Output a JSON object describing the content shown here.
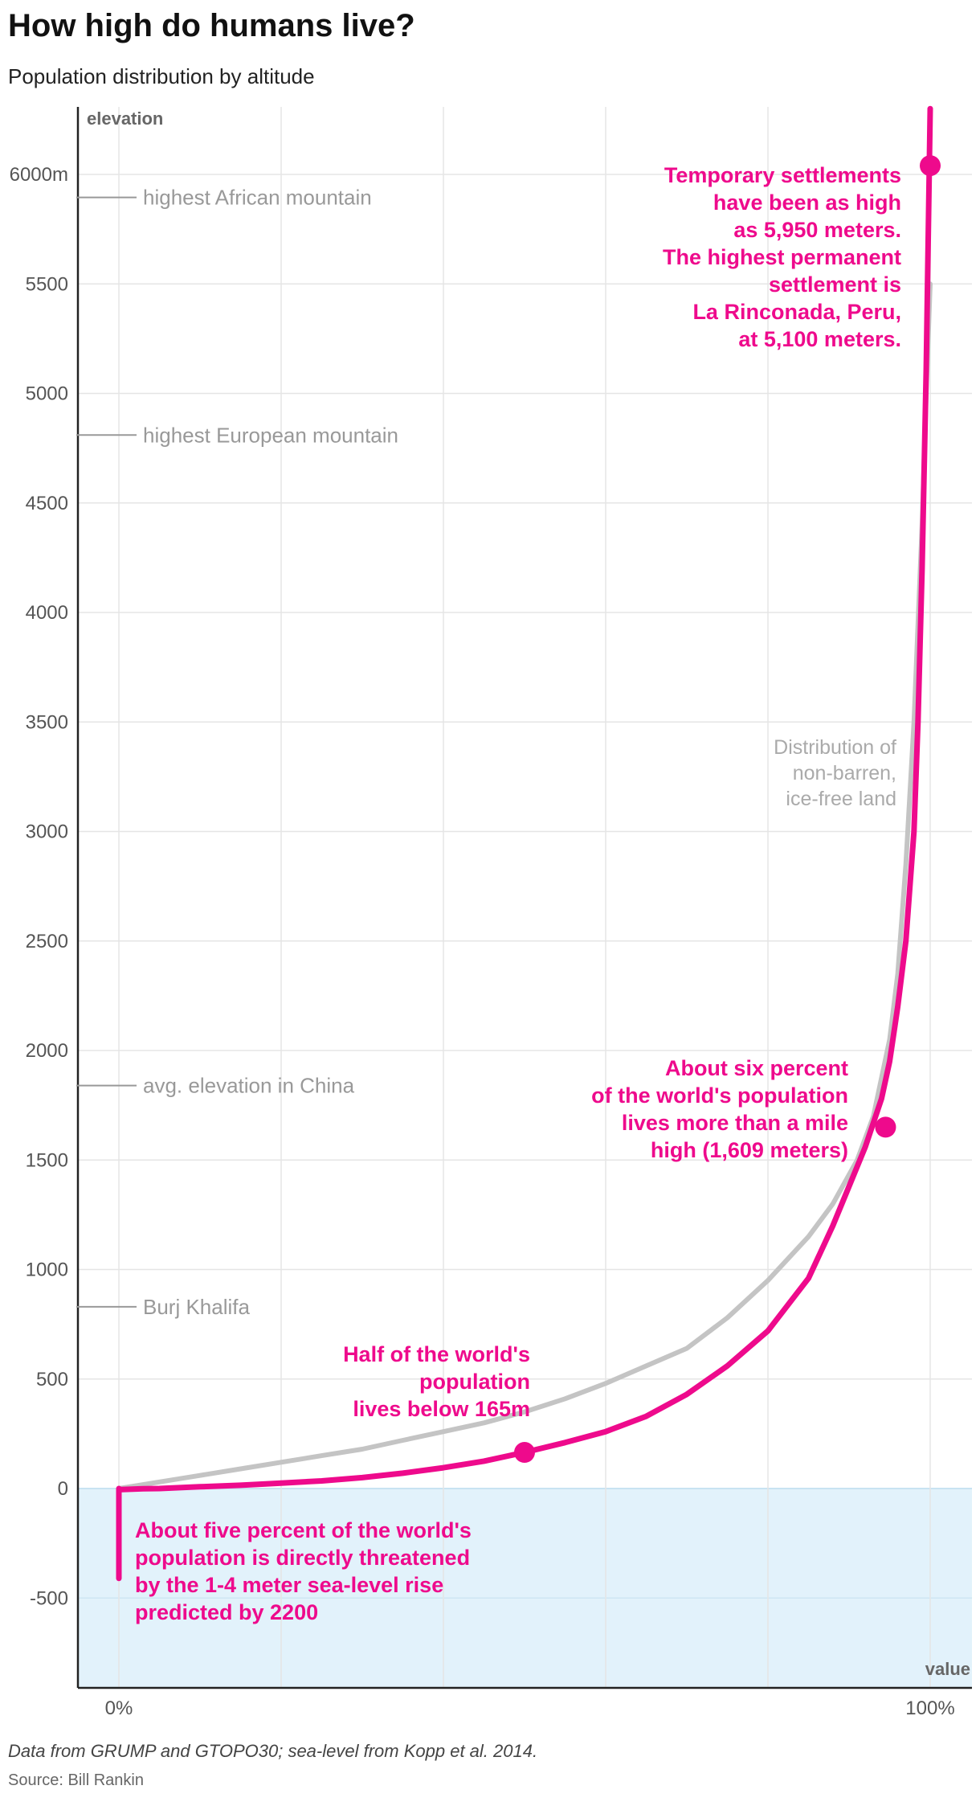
{
  "header": {
    "title": "How high do humans live?",
    "subtitle": "Population distribution by altitude"
  },
  "footer": {
    "note": "Data from GRUMP and GTOPO30; sea-level from Kopp et al. 2014.",
    "source": "Source: Bill Rankin"
  },
  "colors": {
    "population": "#ee0a8c",
    "land": "#c4c4c4",
    "below_sea": "#e2f2fb",
    "reference": "#999999",
    "grid": "#e5e5e5"
  },
  "chart_data": {
    "type": "line",
    "xlabel": "value",
    "ylabel": "elevation",
    "xlim": [
      0,
      100
    ],
    "ylim": [
      -900,
      6300
    ],
    "x_tick_labels": [
      {
        "value": 0,
        "label": "0%"
      },
      {
        "value": 100,
        "label": "100%"
      }
    ],
    "x_gridlines": [
      0,
      20,
      40,
      60,
      80,
      100
    ],
    "y_ticks": [
      {
        "value": 6000,
        "label": "6000m"
      },
      {
        "value": 5500,
        "label": "5500"
      },
      {
        "value": 5000,
        "label": "5000"
      },
      {
        "value": 4500,
        "label": "4500"
      },
      {
        "value": 4000,
        "label": "4000"
      },
      {
        "value": 3500,
        "label": "3500"
      },
      {
        "value": 3000,
        "label": "3000"
      },
      {
        "value": 2500,
        "label": "2500"
      },
      {
        "value": 2000,
        "label": "2000"
      },
      {
        "value": 1500,
        "label": "1500"
      },
      {
        "value": 1000,
        "label": "1000"
      },
      {
        "value": 500,
        "label": "500"
      },
      {
        "value": 0,
        "label": "0"
      },
      {
        "value": -500,
        "label": "-500"
      }
    ],
    "grid": true,
    "below_sea_level_band": [
      -900,
      0
    ],
    "reference_lines": [
      {
        "value": 5895,
        "label": "highest African mountain"
      },
      {
        "value": 4810,
        "label": "highest European mountain"
      },
      {
        "value": 1840,
        "label": "avg. elevation in China"
      },
      {
        "value": 830,
        "label": "Burj Khalifa"
      }
    ],
    "series": [
      {
        "key": "land",
        "name": "Distribution of non-barren, ice-free land",
        "x": [
          0,
          5,
          10,
          15,
          20,
          25,
          30,
          35,
          40,
          45,
          50,
          55,
          60,
          65,
          70,
          75,
          80,
          85,
          88,
          91,
          93,
          95,
          96,
          97,
          98,
          99,
          99.5,
          100
        ],
        "y": [
          0,
          30,
          60,
          90,
          120,
          150,
          180,
          220,
          260,
          300,
          350,
          410,
          480,
          560,
          640,
          780,
          950,
          1150,
          1300,
          1500,
          1700,
          2050,
          2350,
          2850,
          3500,
          4400,
          5000,
          5500
        ]
      },
      {
        "key": "population",
        "name": "Population",
        "x": [
          0,
          3,
          5,
          10,
          15,
          20,
          25,
          30,
          35,
          40,
          45,
          50,
          55,
          60,
          65,
          70,
          75,
          80,
          85,
          88,
          90,
          92,
          94,
          95,
          96,
          97,
          98,
          98.5,
          99,
          99.5,
          100
        ],
        "y": [
          -5,
          -1,
          0,
          8,
          15,
          25,
          35,
          50,
          70,
          95,
          125,
          165,
          210,
          260,
          330,
          430,
          560,
          720,
          960,
          1200,
          1380,
          1560,
          1780,
          1950,
          2200,
          2500,
          3000,
          3500,
          4200,
          5100,
          6300
        ]
      }
    ],
    "sea_level_threat": {
      "x": 0,
      "y_range": [
        -410,
        0
      ]
    },
    "highlighted_points": [
      {
        "x": 50,
        "y": 165
      },
      {
        "x": 94.5,
        "y": 1650
      },
      {
        "x": 100,
        "y": 6040
      }
    ],
    "annotations": {
      "sea_level": [
        "About five percent of the world's",
        "population is directly threatened",
        "by the 1-4 meter sea-level rise",
        "predicted by 2200"
      ],
      "half": [
        "Half of the world's",
        "population",
        "lives below 165m"
      ],
      "mile": [
        "About six percent",
        "of the world's population",
        "lives more than a mile",
        "high (1,609 meters)"
      ],
      "settlements": [
        "Temporary settlements",
        "have been as high",
        "as 5,950 meters.",
        "The highest permanent",
        "settlement is",
        "La Rinconada, Peru,",
        "at 5,100 meters."
      ],
      "land": [
        "Distribution of",
        "non-barren,",
        "ice-free land"
      ]
    }
  }
}
